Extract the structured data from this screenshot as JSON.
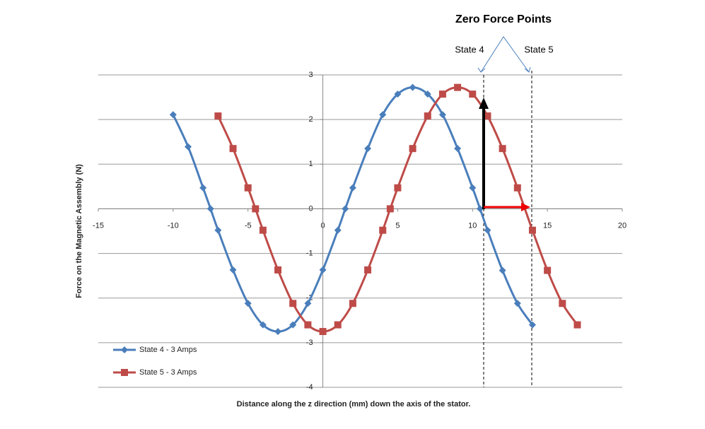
{
  "chart_data": {
    "type": "line",
    "x_label": "Distance along the z direction (mm) down the axis of the stator.",
    "y_label": "Force on the Magnetic Assembly (N)",
    "annotations": [
      "Zero Force Points",
      "State 4",
      "State 5"
    ],
    "xlim": [
      -15,
      20
    ],
    "xticks": [
      -15,
      -10,
      -5,
      0,
      5,
      10,
      15,
      20
    ],
    "ylim": [
      -4,
      3
    ],
    "yticks": [
      3,
      2,
      1,
      0,
      -1,
      -2,
      -3,
      -4
    ],
    "grid": true,
    "legend": "lower left",
    "series": [
      {
        "name": "State 4 - 3 Amps",
        "color": "#4a7ebb",
        "marker": "diamond",
        "x": [
          -10,
          -9,
          -8,
          -7.5,
          -7,
          -6,
          -5,
          -4,
          -3,
          -2,
          -1,
          0,
          1,
          1.5,
          2,
          3,
          4,
          5,
          6,
          7,
          8,
          9,
          10,
          10.5,
          11,
          12,
          13,
          14
        ],
        "values": [
          2.11,
          1.39,
          0.47,
          0,
          -0.48,
          -1.37,
          -2.12,
          -2.6,
          -2.75,
          -2.6,
          -2.12,
          -1.37,
          -0.48,
          0,
          0.47,
          1.35,
          2.11,
          2.57,
          2.72,
          2.57,
          2.11,
          1.35,
          0.47,
          0,
          -0.48,
          -1.38,
          -2.12,
          -2.6
        ]
      },
      {
        "name": "State 5 - 3 Amps",
        "color": "#be4b48",
        "marker": "square",
        "x": [
          -7,
          -6,
          -5,
          -4.5,
          -4,
          -3,
          -2,
          -1,
          0,
          1,
          2,
          3,
          4,
          4.5,
          5,
          6,
          7,
          8,
          9,
          10,
          11,
          12,
          13,
          14,
          15,
          16,
          17
        ],
        "values": [
          2.08,
          1.35,
          0.47,
          0,
          -0.48,
          -1.37,
          -2.12,
          -2.6,
          -2.75,
          -2.6,
          -2.12,
          -1.37,
          -0.48,
          0,
          0.47,
          1.35,
          2.08,
          2.57,
          2.72,
          2.57,
          2.08,
          1.35,
          0.47,
          -0.48,
          -1.38,
          -2.12,
          -2.6
        ]
      }
    ]
  }
}
